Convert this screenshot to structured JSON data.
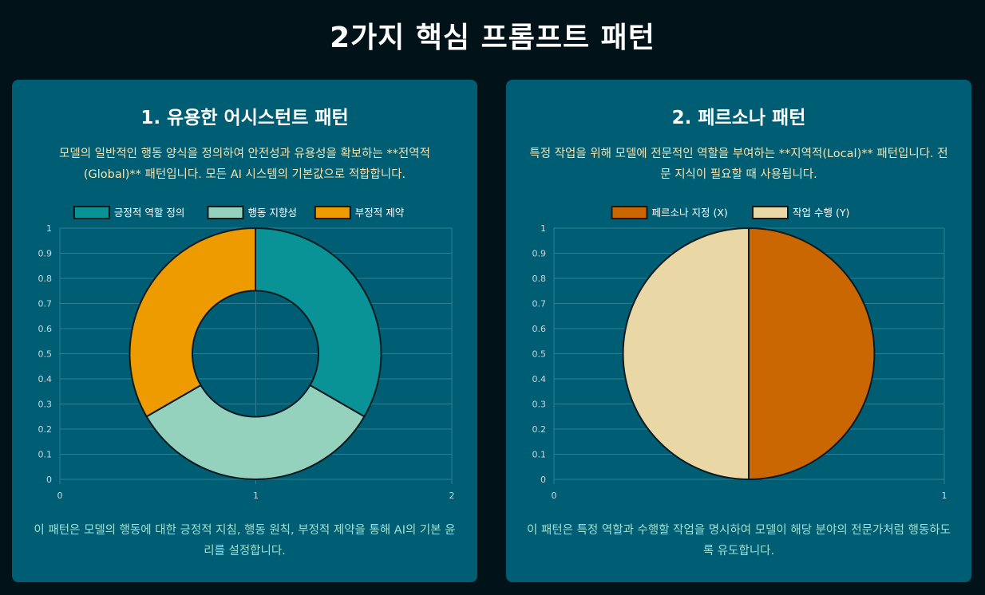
{
  "page_title": "2가지 핵심 프롬프트 패턴",
  "cards": [
    {
      "title": "1. 유용한 어시스턴트 패턴",
      "description": "모델의 일반적인 행동 양식을 정의하여 안전성과 유용성을 확보하는 **전역적(Global)** 패턴입니다. 모든 AI 시스템의 기본값으로 적합합니다.",
      "note": "이 패턴은 모델의 행동에 대한 긍정적 지침, 행동 원칙, 부정적 제약을 통해 AI의 기본 윤리를 설정합니다."
    },
    {
      "title": "2. 페르소나 패턴",
      "description": "특정 작업을 위해 모델에 전문적인 역할을 부여하는 **지역적(Local)** 패턴입니다. 전문 지식이 필요할 때 사용됩니다.",
      "note": "이 패턴은 특정 역할과 수행할 작업을 명시하여 모델이 해당 분야의 전문가처럼 행동하도록 유도합니다."
    }
  ],
  "chart_data": [
    {
      "type": "doughnut",
      "categories": [
        "긍정적 역할 정의",
        "행동 지향성",
        "부정적 제약"
      ],
      "values": [
        1,
        1,
        1
      ],
      "colors": [
        "#0a9396",
        "#94d2bd",
        "#ee9b00"
      ],
      "x_ticks": [
        "0",
        "1",
        "2"
      ],
      "y_ticks": [
        "0",
        "0.1",
        "0.2",
        "0.3",
        "0.4",
        "0.5",
        "0.6",
        "0.7",
        "0.8",
        "0.9",
        "1"
      ],
      "grid": true,
      "legend_position": "top"
    },
    {
      "type": "pie",
      "categories": [
        "페르소나 지정 (X)",
        "작업 수행 (Y)"
      ],
      "values": [
        1,
        1
      ],
      "colors": [
        "#ca6702",
        "#e9d8a6"
      ],
      "x_ticks": [
        "0",
        "1"
      ],
      "y_ticks": [
        "0",
        "0.1",
        "0.2",
        "0.3",
        "0.4",
        "0.5",
        "0.6",
        "0.7",
        "0.8",
        "0.9",
        "1"
      ],
      "grid": true,
      "legend_position": "top"
    }
  ]
}
